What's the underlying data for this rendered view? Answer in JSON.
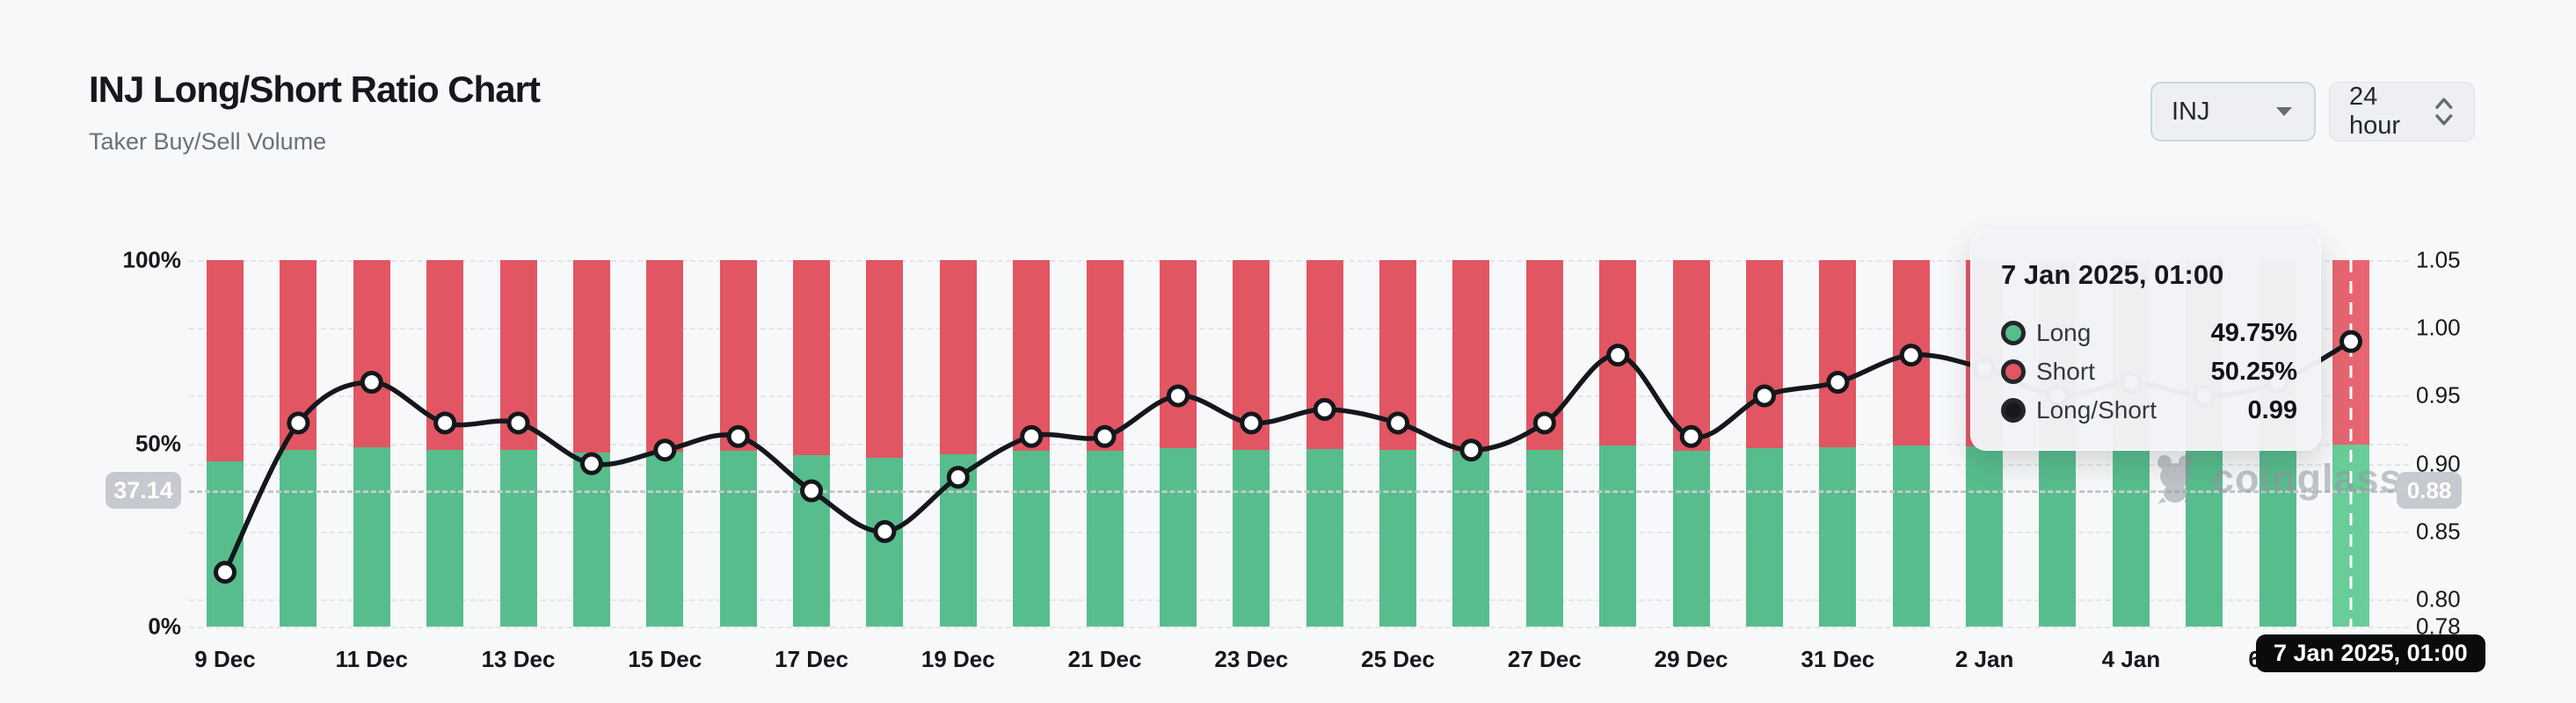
{
  "header": {
    "title": "INJ Long/Short Ratio Chart",
    "subtitle": "Taker Buy/Sell Volume"
  },
  "controls": {
    "symbol": "INJ",
    "interval": "24 hour"
  },
  "watermark": {
    "text": "coinglass"
  },
  "tooltip": {
    "title": "7 Jan 2025, 01:00",
    "rows": [
      {
        "label": "Long",
        "value": "49.75%",
        "color": "#57bd8c"
      },
      {
        "label": "Short",
        "value": "50.25%",
        "color": "#e15662"
      },
      {
        "label": "Long/Short",
        "value": "0.99",
        "color": "#16181d"
      }
    ]
  },
  "chart_data": {
    "type": "bar",
    "title": "INJ Long/Short Ratio Chart",
    "subtitle": "Taker Buy/Sell Volume",
    "legend": [
      "Long",
      "Short",
      "Long/Short"
    ],
    "left_axis": {
      "ticks": [
        "100%",
        "50%",
        "0%"
      ],
      "range": [
        0,
        100
      ],
      "unit": "%"
    },
    "right_axis": {
      "ticks": [
        "1.05",
        "1.00",
        "0.95",
        "0.90",
        "0.85",
        "0.80",
        "0.78"
      ],
      "range": [
        0.78,
        1.05
      ]
    },
    "x_tick_labels": [
      "9 Dec",
      "11 Dec",
      "13 Dec",
      "15 Dec",
      "17 Dec",
      "19 Dec",
      "21 Dec",
      "23 Dec",
      "25 Dec",
      "27 Dec",
      "29 Dec",
      "31 Dec",
      "2 Jan",
      "4 Jan",
      "6 Jan"
    ],
    "marker_line": {
      "left_value": "37.14",
      "right_value": "0.88"
    },
    "highlight": {
      "date_label": "7 Jan 2025, 01:00",
      "long": "49.75%",
      "short": "50.25%",
      "ratio": "0.99"
    },
    "colors": {
      "long": "#57bd8c",
      "short": "#e15662",
      "long_highlight": "#68cd98",
      "short_highlight": "#e66570",
      "line": "#14171c",
      "grid": "#e3e5e9"
    },
    "points": [
      {
        "date": "9 Dec",
        "long_pct": 45.05,
        "short_pct": 54.95,
        "ratio": 0.82
      },
      {
        "date": "10 Dec",
        "long_pct": 48.19,
        "short_pct": 51.81,
        "ratio": 0.93
      },
      {
        "date": "11 Dec",
        "long_pct": 48.98,
        "short_pct": 51.02,
        "ratio": 0.96
      },
      {
        "date": "12 Dec",
        "long_pct": 48.19,
        "short_pct": 51.81,
        "ratio": 0.93
      },
      {
        "date": "13 Dec",
        "long_pct": 48.19,
        "short_pct": 51.81,
        "ratio": 0.93
      },
      {
        "date": "14 Dec",
        "long_pct": 47.37,
        "short_pct": 52.63,
        "ratio": 0.9
      },
      {
        "date": "15 Dec",
        "long_pct": 47.64,
        "short_pct": 52.36,
        "ratio": 0.91
      },
      {
        "date": "16 Dec",
        "long_pct": 47.92,
        "short_pct": 52.08,
        "ratio": 0.92
      },
      {
        "date": "17 Dec",
        "long_pct": 46.81,
        "short_pct": 53.19,
        "ratio": 0.88
      },
      {
        "date": "18 Dec",
        "long_pct": 45.95,
        "short_pct": 54.05,
        "ratio": 0.85
      },
      {
        "date": "19 Dec",
        "long_pct": 47.09,
        "short_pct": 52.91,
        "ratio": 0.89
      },
      {
        "date": "20 Dec",
        "long_pct": 47.92,
        "short_pct": 52.08,
        "ratio": 0.92
      },
      {
        "date": "21 Dec",
        "long_pct": 47.92,
        "short_pct": 52.08,
        "ratio": 0.92
      },
      {
        "date": "22 Dec",
        "long_pct": 48.72,
        "short_pct": 51.28,
        "ratio": 0.95
      },
      {
        "date": "23 Dec",
        "long_pct": 48.19,
        "short_pct": 51.81,
        "ratio": 0.93
      },
      {
        "date": "24 Dec",
        "long_pct": 48.45,
        "short_pct": 51.55,
        "ratio": 0.94
      },
      {
        "date": "25 Dec",
        "long_pct": 48.19,
        "short_pct": 51.81,
        "ratio": 0.93
      },
      {
        "date": "26 Dec",
        "long_pct": 47.64,
        "short_pct": 52.36,
        "ratio": 0.91
      },
      {
        "date": "27 Dec",
        "long_pct": 48.19,
        "short_pct": 51.81,
        "ratio": 0.93
      },
      {
        "date": "28 Dec",
        "long_pct": 49.49,
        "short_pct": 50.51,
        "ratio": 0.98
      },
      {
        "date": "29 Dec",
        "long_pct": 47.92,
        "short_pct": 52.08,
        "ratio": 0.92
      },
      {
        "date": "30 Dec",
        "long_pct": 48.72,
        "short_pct": 51.28,
        "ratio": 0.95
      },
      {
        "date": "31 Dec",
        "long_pct": 48.98,
        "short_pct": 51.02,
        "ratio": 0.96
      },
      {
        "date": "1 Jan",
        "long_pct": 49.49,
        "short_pct": 50.51,
        "ratio": 0.98
      },
      {
        "date": "2 Jan",
        "long_pct": 49.24,
        "short_pct": 50.76,
        "ratio": 0.97
      },
      {
        "date": "3 Jan",
        "long_pct": 48.72,
        "short_pct": 51.28,
        "ratio": 0.95
      },
      {
        "date": "4 Jan",
        "long_pct": 48.98,
        "short_pct": 51.02,
        "ratio": 0.96
      },
      {
        "date": "5 Jan",
        "long_pct": 48.72,
        "short_pct": 51.28,
        "ratio": 0.95
      },
      {
        "date": "6 Jan",
        "long_pct": 48.98,
        "short_pct": 51.02,
        "ratio": 0.96
      },
      {
        "date": "7 Jan",
        "long_pct": 49.75,
        "short_pct": 50.25,
        "ratio": 0.99
      }
    ]
  }
}
